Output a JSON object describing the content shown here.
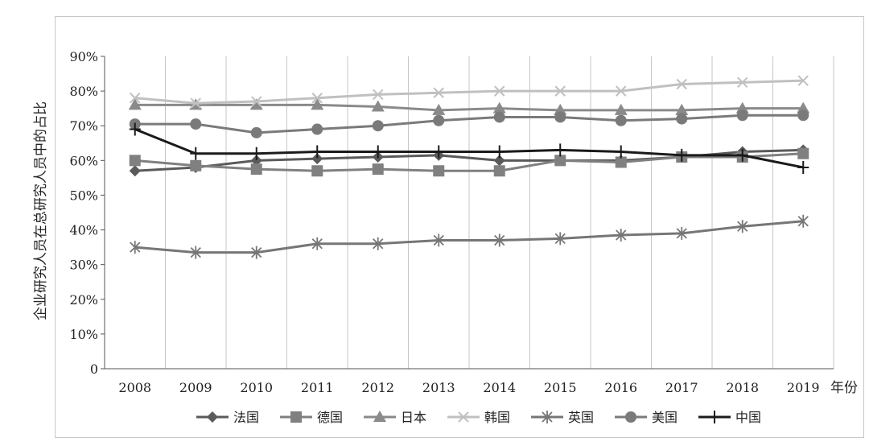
{
  "chart_data": {
    "type": "line",
    "title": "",
    "xlabel": "年份",
    "ylabel": "企业研究人员在总研究人员中的占比",
    "ylim": [
      0,
      90
    ],
    "yticks": [
      "0",
      "10%",
      "20%",
      "30%",
      "40%",
      "50%",
      "60%",
      "70%",
      "80%",
      "90%"
    ],
    "grid": "vertical",
    "legend_position": "bottom",
    "x": [
      "2008",
      "2009",
      "2010",
      "2011",
      "2012",
      "2013",
      "2014",
      "2015",
      "2016",
      "2017",
      "2018",
      "2019"
    ],
    "series": [
      {
        "name": "法国",
        "marker": "diamond",
        "color": "#5a5a5a",
        "values": [
          57,
          58,
          60,
          60.5,
          61,
          61.5,
          60,
          60,
          60,
          61,
          62.5,
          63
        ]
      },
      {
        "name": "德国",
        "marker": "square",
        "color": "#808080",
        "values": [
          60,
          58.5,
          57.5,
          57,
          57.5,
          57,
          57,
          60,
          59.5,
          61,
          61,
          62
        ]
      },
      {
        "name": "日本",
        "marker": "triangle",
        "color": "#8a8a8a",
        "values": [
          76,
          76,
          76,
          76,
          75.5,
          74.5,
          75,
          74.5,
          74.5,
          74.5,
          75,
          75
        ]
      },
      {
        "name": "韩国",
        "marker": "x",
        "color": "#c0c0c0",
        "values": [
          78,
          76.5,
          77,
          78,
          79,
          79.5,
          80,
          80,
          80,
          82,
          82.5,
          83
        ]
      },
      {
        "name": "英国",
        "marker": "star",
        "color": "#767676",
        "values": [
          35,
          33.5,
          33.5,
          36,
          36,
          37,
          37,
          37.5,
          38.5,
          39,
          41,
          42.5
        ]
      },
      {
        "name": "美国",
        "marker": "circle",
        "color": "#7a7a7a",
        "values": [
          70.5,
          70.5,
          68,
          69,
          70,
          71.5,
          72.5,
          72.5,
          71.5,
          72,
          73,
          73
        ]
      },
      {
        "name": "中国",
        "marker": "plus",
        "color": "#1a1a1a",
        "values": [
          69,
          62,
          62,
          62.5,
          62.5,
          62.5,
          62.5,
          63,
          62.5,
          61.5,
          61.5,
          58
        ]
      }
    ]
  }
}
